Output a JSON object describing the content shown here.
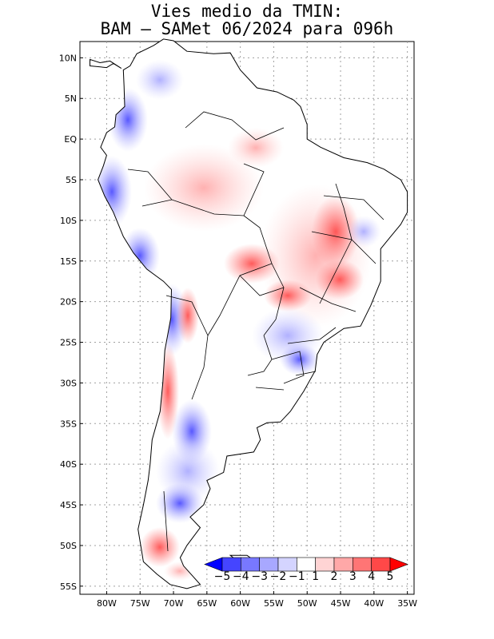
{
  "title": {
    "line1": "Vies medio da TMIN:",
    "line2": "BAM – SAMet 06/2024  para 096h"
  },
  "map": {
    "region": "South America",
    "lon_range": [
      -84,
      -34
    ],
    "lat_range": [
      -56,
      12
    ],
    "lat_ticks": [
      {
        "value": 10,
        "label": "10N"
      },
      {
        "value": 5,
        "label": "5N"
      },
      {
        "value": 0,
        "label": "EQ"
      },
      {
        "value": -5,
        "label": "5S"
      },
      {
        "value": -10,
        "label": "10S"
      },
      {
        "value": -15,
        "label": "15S"
      },
      {
        "value": -20,
        "label": "20S"
      },
      {
        "value": -25,
        "label": "25S"
      },
      {
        "value": -30,
        "label": "30S"
      },
      {
        "value": -35,
        "label": "35S"
      },
      {
        "value": -40,
        "label": "40S"
      },
      {
        "value": -45,
        "label": "45S"
      },
      {
        "value": -50,
        "label": "50S"
      },
      {
        "value": -55,
        "label": "55S"
      }
    ],
    "lon_ticks": [
      {
        "value": -80,
        "label": "80W"
      },
      {
        "value": -75,
        "label": "75W"
      },
      {
        "value": -70,
        "label": "70W"
      },
      {
        "value": -65,
        "label": "65W"
      },
      {
        "value": -60,
        "label": "60W"
      },
      {
        "value": -55,
        "label": "55W"
      },
      {
        "value": -50,
        "label": "50W"
      },
      {
        "value": -45,
        "label": "45W"
      },
      {
        "value": -40,
        "label": "40W"
      },
      {
        "value": -35,
        "label": "35W"
      }
    ]
  },
  "colorbar": {
    "labels": [
      "−5",
      "−4",
      "−3",
      "−2",
      "−1",
      "1",
      "2",
      "3",
      "4",
      "5"
    ],
    "colors": [
      "#0000ff",
      "#4545ff",
      "#7878ff",
      "#a8a8ff",
      "#d4d4ff",
      "#ffffff",
      "#ffd4d4",
      "#ffa8a8",
      "#ff7575",
      "#ff4848",
      "#ff0000"
    ]
  },
  "colors": {
    "land": "#ffffff",
    "grid": "#a0a0a0",
    "coast": "#000000"
  }
}
